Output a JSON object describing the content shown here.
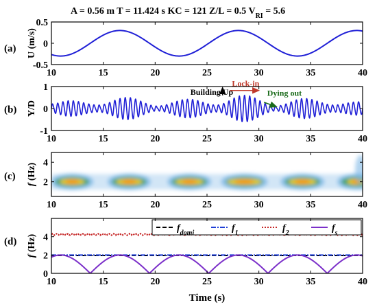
{
  "header": {
    "parts": [
      {
        "kind": "text",
        "text": "A = 0.56 m   T = 11.424 s   KC = 121  Z/L = 0.5  V"
      },
      {
        "kind": "sub",
        "text": "RI"
      },
      {
        "kind": "text",
        "text": " = 5.6"
      }
    ]
  },
  "chart_data": [
    {
      "panel": "(a)",
      "type": "line",
      "ylabel": "U (m/s)",
      "xlim": [
        10,
        40
      ],
      "ylim": [
        -0.5,
        0.5
      ],
      "xticks": [
        "10",
        "15",
        "20",
        "25",
        "30",
        "35",
        "40"
      ],
      "yticks": [
        "-0.5",
        "0",
        "0.5"
      ],
      "color": "#1f1fd6",
      "series": [
        {
          "description": "sinusoid",
          "amplitude": 0.3,
          "period_s": 11.424,
          "phase_peak_s": 16.6
        }
      ]
    },
    {
      "panel": "(b)",
      "type": "line",
      "ylabel": "Y/D",
      "xlim": [
        10,
        40
      ],
      "ylim": [
        -1,
        1
      ],
      "xticks": [
        "10",
        "15",
        "20",
        "25",
        "30",
        "35",
        "40"
      ],
      "yticks": [
        "-1",
        "0",
        "1"
      ],
      "color": "#1f1fd6",
      "envelope_peaks_x": [
        11.8,
        17.3,
        23.2,
        28.6,
        34.4,
        39.6
      ],
      "envelope_peaks_y": [
        0.35,
        0.5,
        0.42,
        0.6,
        0.45,
        0.3
      ],
      "envelope_valleys_x": [
        14.5,
        20.2,
        25.9,
        31.6,
        37.2
      ],
      "envelope_valleys_y": [
        0.15,
        0.1,
        0.15,
        0.1,
        0.15
      ],
      "oscillation_frequency_hz": 2.0,
      "annotations": [
        {
          "text": "Building Up",
          "x": 23.4,
          "y": 0.62,
          "color": "#000000",
          "arrow_to": [
            26.5,
            0.95
          ]
        },
        {
          "text": "Lock-in",
          "x": 27.4,
          "y": 1.02,
          "color": "#c0392b",
          "arrow_from": [
            27.2,
            0.82
          ],
          "arrow_to": [
            30.0,
            0.82
          ]
        },
        {
          "text": "Dying out",
          "x": 30.8,
          "y": 0.58,
          "color": "#1b6b1b",
          "arrow_from": [
            30.5,
            0.28
          ],
          "arrow_to": [
            31.7,
            0.08
          ]
        }
      ]
    },
    {
      "panel": "(c)",
      "type": "heatmap",
      "ylabel": "f (Hz)",
      "xlim": [
        10,
        40
      ],
      "ylim": [
        0.5,
        5
      ],
      "xticks": [
        "10",
        "15",
        "20",
        "25",
        "30",
        "35",
        "40"
      ],
      "yticks": [
        "2",
        "4"
      ],
      "blobs": [
        {
          "x": 12.0,
          "f": 2.0,
          "intensity": 0.7
        },
        {
          "x": 17.5,
          "f": 2.0,
          "intensity": 0.75
        },
        {
          "x": 23.3,
          "f": 2.0,
          "intensity": 0.8
        },
        {
          "x": 28.6,
          "f": 2.0,
          "intensity": 1.0
        },
        {
          "x": 34.2,
          "f": 2.0,
          "intensity": 0.8
        },
        {
          "x": 39.5,
          "f": 2.0,
          "intensity": 0.55
        }
      ],
      "colors": {
        "background": "#ffffff",
        "low": "#7fb8e6",
        "mid": "#3a9e5f",
        "high": "#f2d200",
        "peak": "#ff8a00"
      }
    },
    {
      "panel": "(d)",
      "type": "line",
      "ylabel": "f (Hz)",
      "xlabel": "Time (s)",
      "xlim": [
        10,
        40
      ],
      "ylim": [
        0,
        6
      ],
      "xticks": [
        "10",
        "15",
        "20",
        "25",
        "30",
        "35",
        "40"
      ],
      "yticks": [
        "0",
        "2",
        "4"
      ],
      "legend_position": "top",
      "series": [
        {
          "name": "f",
          "sub": "domi",
          "style": "dashed",
          "color": "#000000",
          "value": 1.95
        },
        {
          "name": "f",
          "sub": "1",
          "style": "dashdot",
          "color": "#1f3fd6",
          "value": 2.0
        },
        {
          "name": "f",
          "sub": "2",
          "style": "dotted",
          "color": "#c62828",
          "value": 4.25
        },
        {
          "name": "f",
          "sub": "s",
          "style": "solid",
          "color": "#7b2fc9",
          "description": "2 x |U|/0.3, zero at flow reversal"
        }
      ]
    }
  ]
}
